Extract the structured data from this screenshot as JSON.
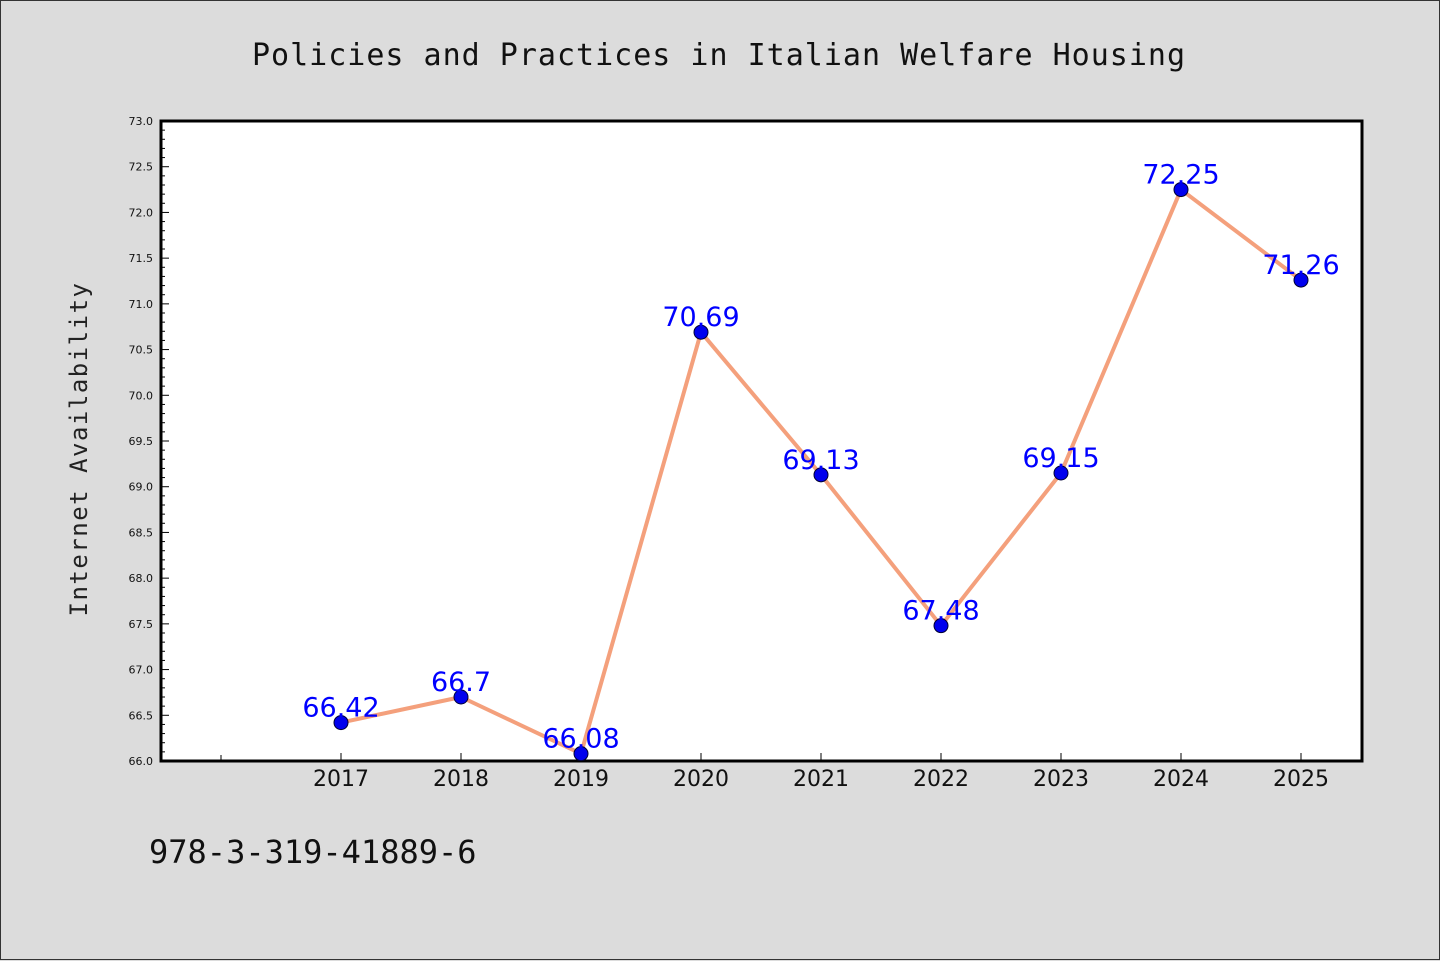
{
  "footer": {
    "code": "978-3-319-41889-6"
  },
  "colors": {
    "background": "#dcdcdc",
    "plot_background": "#ffffff",
    "line": "#f4a07c",
    "marker": "#0000ee",
    "data_label": "#0000ff",
    "text": "#111111"
  },
  "chart_data": {
    "type": "line",
    "title": "Policies and Practices in Italian Welfare Housing",
    "xlabel": "",
    "ylabel": "Internet Availability",
    "categories": [
      "2017",
      "2018",
      "2019",
      "2020",
      "2021",
      "2022",
      "2023",
      "2024",
      "2025"
    ],
    "series": [
      {
        "values": [
          66.42,
          66.7,
          66.08,
          70.69,
          69.13,
          67.48,
          69.15,
          72.25,
          71.26
        ],
        "labels": [
          "66.42",
          "66.7",
          "66.08",
          "70.69",
          "69.13",
          "67.48",
          "69.15",
          "72.25",
          "71.26"
        ]
      }
    ],
    "ylim": [
      66.0,
      73.0
    ],
    "yticks": [
      "66.0",
      "66.5",
      "67.0",
      "67.5",
      "68.0",
      "68.5",
      "69.0",
      "69.5",
      "70.0",
      "70.5",
      "71.0",
      "71.5",
      "72.0",
      "72.5",
      "73.0"
    ],
    "grid": false,
    "legend": "none"
  }
}
